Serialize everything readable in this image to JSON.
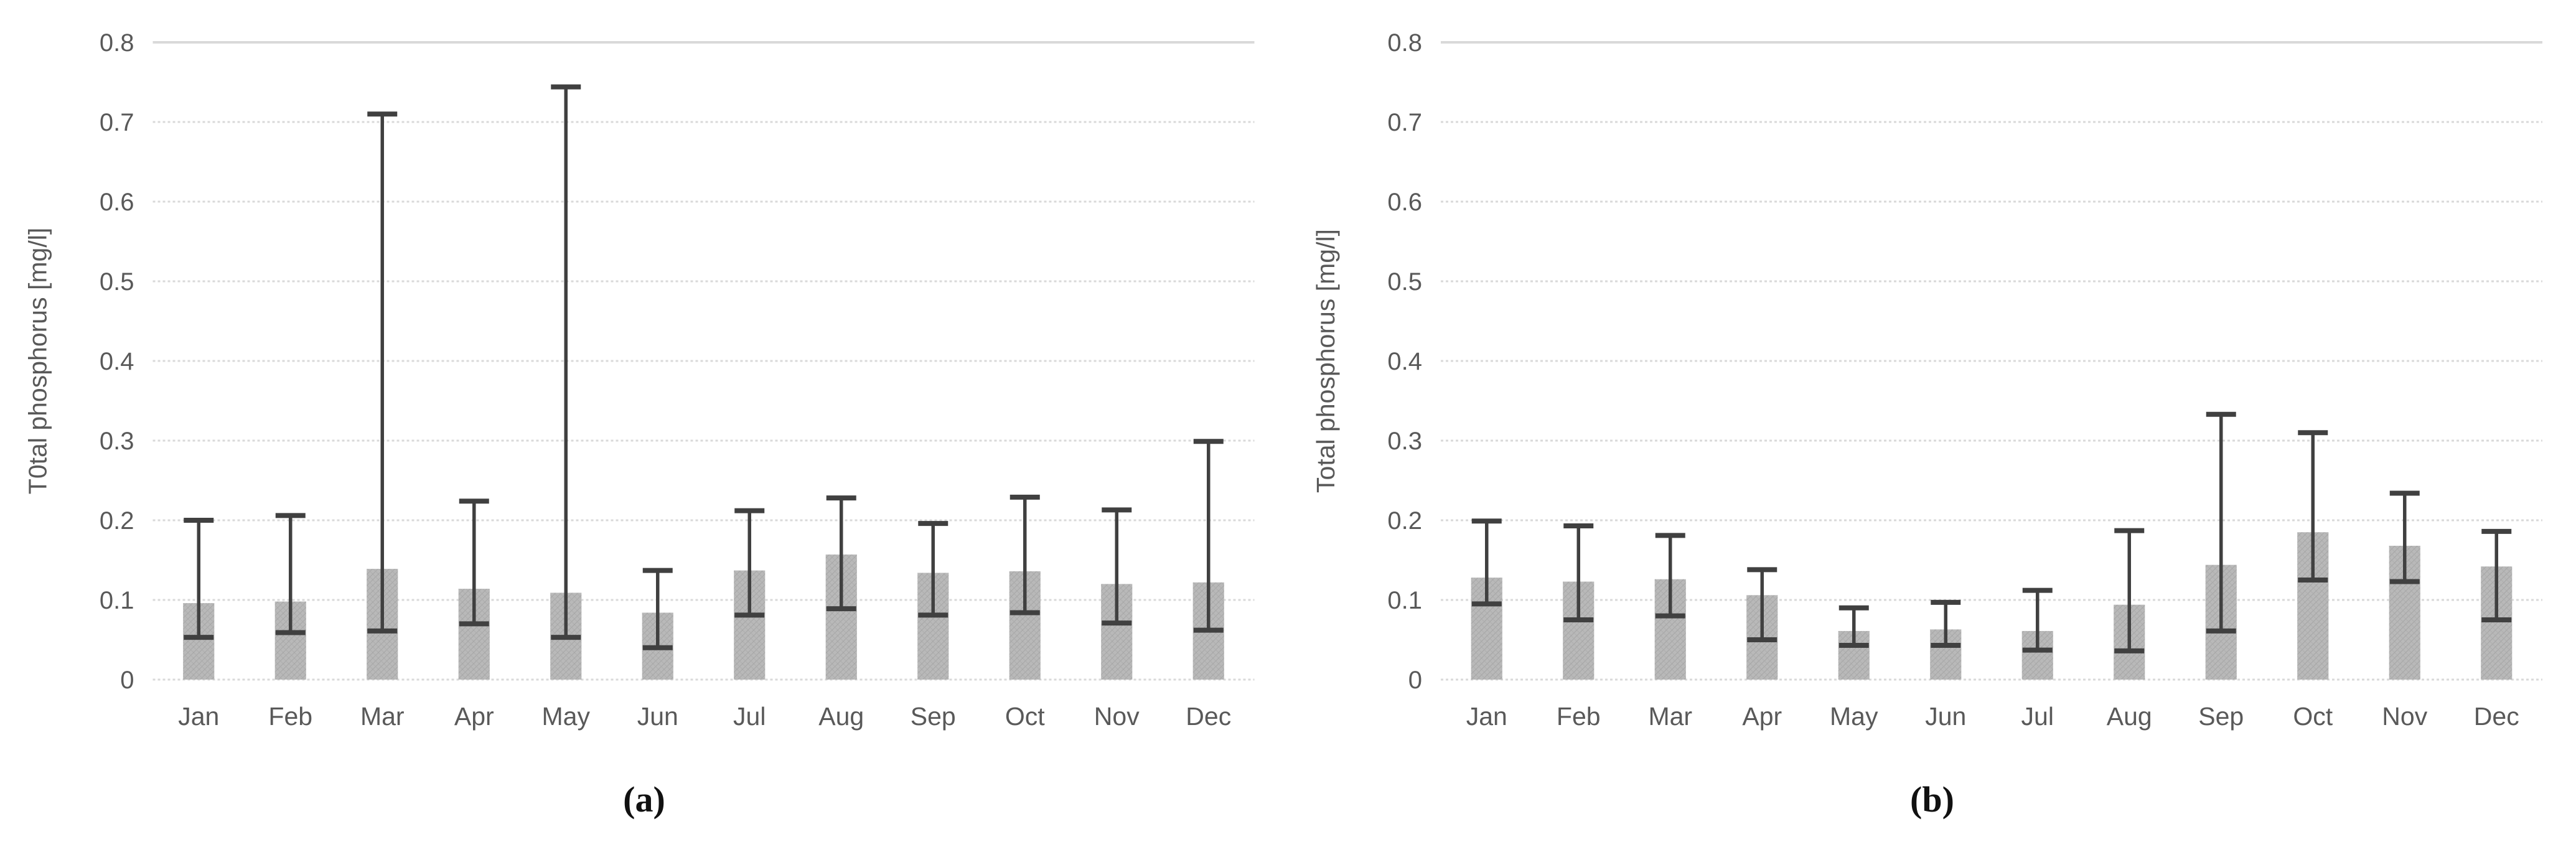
{
  "colors": {
    "background": "#ffffff",
    "grid_line": "#d9d9d9",
    "bar_fill": "#b9b9b9",
    "bar_hatch": "#a3a3a3",
    "error_bar": "#404040",
    "axis_text": "#595959",
    "caption_text": "#111111"
  },
  "chart_data": [
    {
      "type": "bar",
      "caption": "(a)",
      "title": "",
      "xlabel": "",
      "ylabel": "T0tal phosphorus [mg/l]",
      "ylim": [
        0,
        0.8
      ],
      "ytick_step": 0.1,
      "ytick_labels": [
        "0",
        "0.1",
        "0.2",
        "0.3",
        "0.4",
        "0.5",
        "0.6",
        "0.7",
        "0.8"
      ],
      "grid": "horizontal-dashed",
      "legend": "none",
      "categories": [
        "Jan",
        "Feb",
        "Mar",
        "Apr",
        "May",
        "Jun",
        "Jul",
        "Aug",
        "Sep",
        "Oct",
        "Nov",
        "Dec"
      ],
      "values": [
        0.096,
        0.098,
        0.139,
        0.114,
        0.109,
        0.084,
        0.137,
        0.157,
        0.134,
        0.136,
        0.12,
        0.122
      ],
      "whisker_low": [
        0.053,
        0.059,
        0.061,
        0.07,
        0.053,
        0.04,
        0.081,
        0.089,
        0.081,
        0.084,
        0.071,
        0.062
      ],
      "whisker_high": [
        0.2,
        0.206,
        0.71,
        0.224,
        0.744,
        0.137,
        0.212,
        0.228,
        0.196,
        0.229,
        0.213,
        0.299
      ]
    },
    {
      "type": "bar",
      "caption": "(b)",
      "title": "",
      "xlabel": "",
      "ylabel": "Total phosphorus [mg/l]",
      "ylim": [
        0,
        0.8
      ],
      "ytick_step": 0.1,
      "ytick_labels": [
        "0",
        "0.1",
        "0.2",
        "0.3",
        "0.4",
        "0.5",
        "0.6",
        "0.7",
        "0.8"
      ],
      "grid": "horizontal-dashed",
      "legend": "none",
      "categories": [
        "Jan",
        "Feb",
        "Mar",
        "Apr",
        "May",
        "Jun",
        "Jul",
        "Aug",
        "Sep",
        "Oct",
        "Nov",
        "Dec"
      ],
      "values": [
        0.128,
        0.123,
        0.126,
        0.106,
        0.061,
        0.063,
        0.061,
        0.094,
        0.144,
        0.185,
        0.168,
        0.142
      ],
      "whisker_low": [
        0.095,
        0.075,
        0.08,
        0.05,
        0.043,
        0.043,
        0.037,
        0.036,
        0.061,
        0.125,
        0.123,
        0.075
      ],
      "whisker_high": [
        0.199,
        0.193,
        0.181,
        0.138,
        0.09,
        0.097,
        0.112,
        0.187,
        0.333,
        0.31,
        0.234,
        0.186
      ]
    }
  ]
}
